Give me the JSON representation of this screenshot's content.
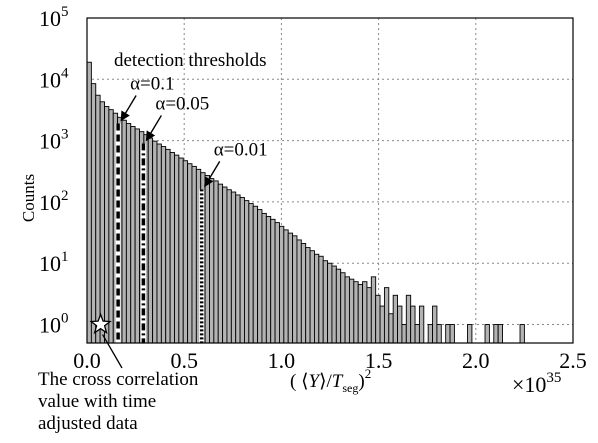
{
  "chart_data": {
    "type": "bar",
    "title": "",
    "xlabel": "( ⟨Y⟩/T_seg )²",
    "xlabel_parts": {
      "prefix": "( ⟨",
      "Y": "Y",
      "mid": "⟩/",
      "T": "T",
      "sub": "seg",
      "suffix": ")",
      "sup": "2"
    },
    "ylabel": "Counts",
    "x_multiplier": {
      "base": "×10",
      "exp": "35"
    },
    "y_scale": "log",
    "xlim": [
      0,
      2.5
    ],
    "ylim": [
      0.5,
      100000
    ],
    "grid": true,
    "x_ticks": [
      {
        "value": 0.0,
        "label": "0.0"
      },
      {
        "value": 0.5,
        "label": "0.5"
      },
      {
        "value": 1.0,
        "label": "1.0"
      },
      {
        "value": 1.5,
        "label": "1.5"
      },
      {
        "value": 2.0,
        "label": "2.0"
      },
      {
        "value": 2.5,
        "label": "2.5"
      }
    ],
    "y_ticks": [
      {
        "value": 1,
        "base": "10",
        "exp": "0"
      },
      {
        "value": 10,
        "base": "10",
        "exp": "1"
      },
      {
        "value": 100,
        "base": "10",
        "exp": "2"
      },
      {
        "value": 1000,
        "base": "10",
        "exp": "3"
      },
      {
        "value": 10000,
        "base": "10",
        "exp": "4"
      },
      {
        "value": 100000,
        "base": "10",
        "exp": "5"
      }
    ],
    "bin_width": 0.0225,
    "bin_start": 0.0,
    "values": [
      19000,
      8500,
      5500,
      4300,
      3600,
      3200,
      2800,
      2400,
      2150,
      1900,
      1700,
      1550,
      1400,
      1250,
      1100,
      980,
      880,
      800,
      720,
      640,
      580,
      520,
      470,
      420,
      380,
      340,
      300,
      270,
      240,
      220,
      195,
      175,
      158,
      145,
      130,
      118,
      105,
      94,
      85,
      75,
      65,
      58,
      52,
      46,
      40,
      35,
      31,
      28,
      24,
      21,
      18,
      16,
      14,
      13,
      11,
      10,
      9,
      8,
      7,
      6,
      5.5,
      5,
      4.5,
      5,
      4,
      6,
      3,
      2,
      4,
      1.5,
      3,
      2,
      1,
      3,
      2,
      1,
      2,
      0,
      1,
      2,
      1,
      0,
      1,
      1,
      0,
      0,
      0,
      1,
      0,
      0,
      0,
      1,
      0,
      1,
      1,
      0,
      0,
      0,
      0,
      1
    ],
    "thresholds": [
      {
        "label": "α=0.1",
        "x": 0.16,
        "style": "dashed",
        "top": 1900
      },
      {
        "label": "α=0.05",
        "x": 0.29,
        "style": "dashdot",
        "top": 900
      },
      {
        "label": "α=0.01",
        "x": 0.59,
        "style": "dotted",
        "top": 160
      }
    ],
    "star": {
      "x": 0.07,
      "y": 1.0
    },
    "annotations": {
      "detection": "detection thresholds",
      "star_lines": [
        "The cross correlation",
        "value with time",
        "adjusted data"
      ]
    }
  }
}
